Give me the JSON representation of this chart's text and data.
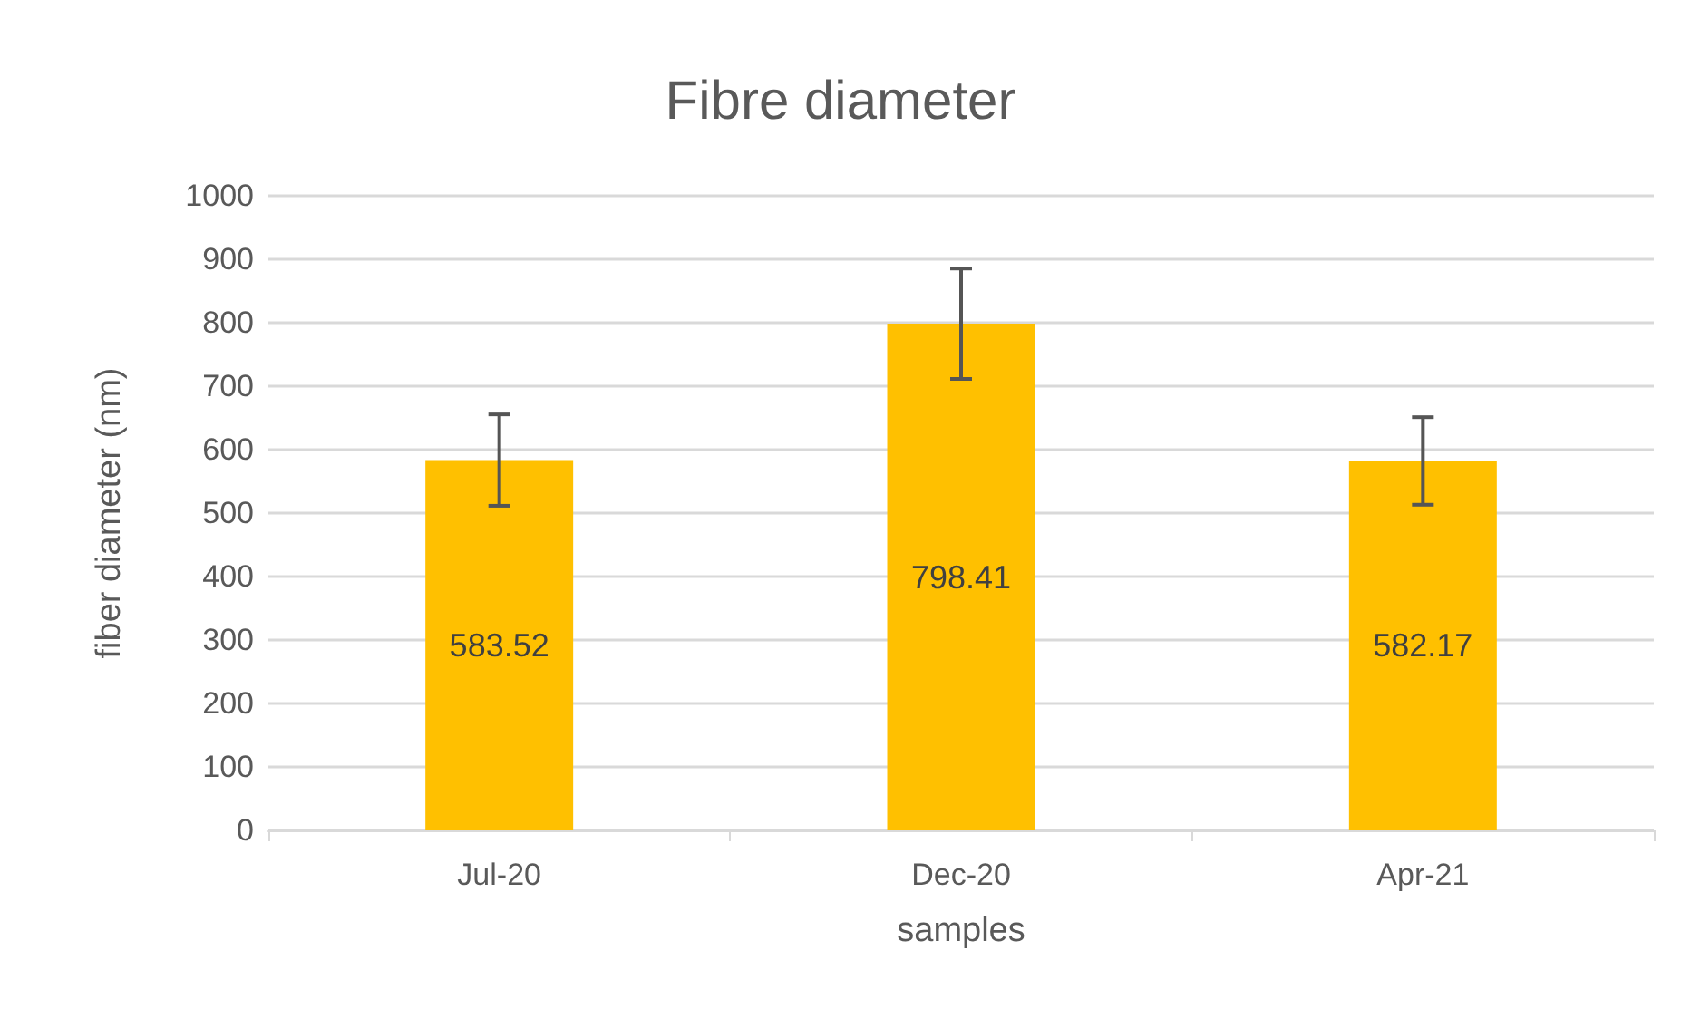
{
  "chart_data": {
    "type": "bar",
    "title": "Fibre diameter",
    "xlabel": "samples",
    "ylabel": "fiber diameter (nm)",
    "categories": [
      "Jul-20",
      "Dec-20",
      "Apr-21"
    ],
    "series": [
      {
        "color": "#ffc000",
        "values": [
          583.52,
          798.41,
          582.17
        ],
        "errors": [
          72,
          87,
          69
        ]
      }
    ],
    "ylim": [
      0,
      1000
    ],
    "yticks": [
      0,
      100,
      200,
      300,
      400,
      500,
      600,
      700,
      800,
      900,
      1000
    ],
    "grid": "y",
    "data_labels": true
  }
}
